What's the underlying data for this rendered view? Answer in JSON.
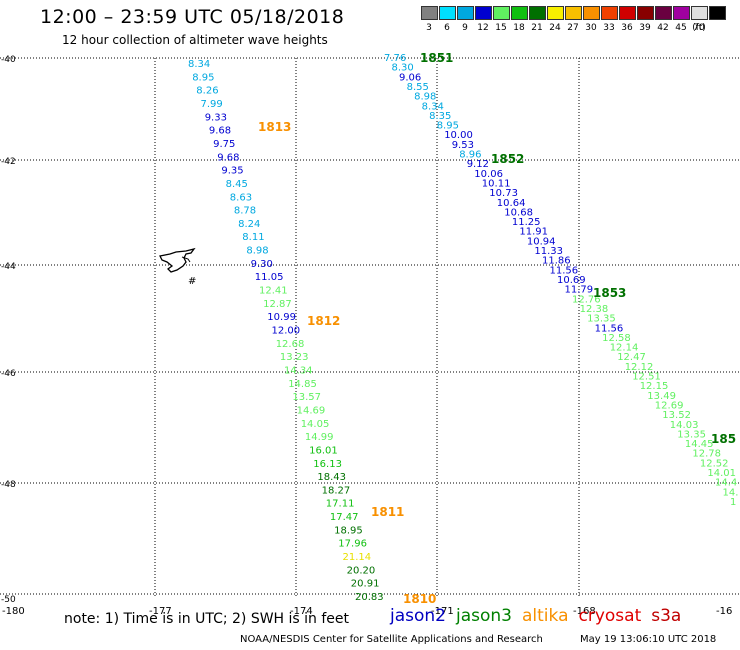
{
  "header": {
    "title": "12:00 – 23:59 UTC 05/18/2018",
    "subtitle": "12 hour collection of altimeter wave heights"
  },
  "colorbar": {
    "unit": "(ft)",
    "bins": [
      {
        "label": "3",
        "color": "#808080"
      },
      {
        "label": "6",
        "color": "#00e0ff"
      },
      {
        "label": "9",
        "color": "#00a8e0"
      },
      {
        "label": "12",
        "color": "#0000d0"
      },
      {
        "label": "15",
        "color": "#60f060"
      },
      {
        "label": "18",
        "color": "#10c010"
      },
      {
        "label": "21",
        "color": "#007000"
      },
      {
        "label": "24",
        "color": "#f8f000"
      },
      {
        "label": "27",
        "color": "#f8c000"
      },
      {
        "label": "30",
        "color": "#f89000"
      },
      {
        "label": "33",
        "color": "#f04000"
      },
      {
        "label": "36",
        "color": "#d00000"
      },
      {
        "label": "39",
        "color": "#880000"
      },
      {
        "label": "42",
        "color": "#6a0040"
      },
      {
        "label": "45",
        "color": "#a000a0"
      },
      {
        "label": "70",
        "color": "#e0e0e0"
      },
      {
        "label": "",
        "color": "#000000"
      }
    ]
  },
  "map": {
    "lon_ticks": [
      "-180",
      "-177",
      "-174",
      "-171",
      "-168",
      "-16"
    ],
    "lat_ticks": [
      "-40",
      "-42",
      "-44",
      "-46",
      "-48",
      "-50"
    ],
    "tracks": [
      {
        "time": "1851",
        "color": "#007000"
      },
      {
        "time": "1852",
        "color": "#007000"
      },
      {
        "time": "1853",
        "color": "#007000"
      },
      {
        "time": "185",
        "color": "#007000"
      },
      {
        "time": "1813",
        "color": "#f89000"
      },
      {
        "time": "1812",
        "color": "#f89000"
      },
      {
        "time": "1811",
        "color": "#f89000"
      },
      {
        "time": "1810",
        "color": "#f89000"
      }
    ],
    "track_a": [
      {
        "v": "8.34",
        "c": "#00a8e0"
      },
      {
        "v": "8.95",
        "c": "#00a8e0"
      },
      {
        "v": "8.26",
        "c": "#00a8e0"
      },
      {
        "v": "7.99",
        "c": "#00a8e0"
      },
      {
        "v": "9.33",
        "c": "#0000d0"
      },
      {
        "v": "9.68",
        "c": "#0000d0"
      },
      {
        "v": "9.75",
        "c": "#0000d0"
      },
      {
        "v": "9.68",
        "c": "#0000d0"
      },
      {
        "v": "9.35",
        "c": "#0000d0"
      },
      {
        "v": "8.45",
        "c": "#00a8e0"
      },
      {
        "v": "8.63",
        "c": "#00a8e0"
      },
      {
        "v": "8.78",
        "c": "#00a8e0"
      },
      {
        "v": "8.24",
        "c": "#00a8e0"
      },
      {
        "v": "8.11",
        "c": "#00a8e0"
      },
      {
        "v": "8.98",
        "c": "#00a8e0"
      },
      {
        "v": "9.30",
        "c": "#0000d0"
      },
      {
        "v": "11.05",
        "c": "#0000d0"
      },
      {
        "v": "12.41",
        "c": "#60f060"
      },
      {
        "v": "12.87",
        "c": "#60f060"
      },
      {
        "v": "10.99",
        "c": "#0000d0"
      },
      {
        "v": "12.00",
        "c": "#0000d0"
      },
      {
        "v": "12.68",
        "c": "#60f060"
      },
      {
        "v": "13.23",
        "c": "#60f060"
      },
      {
        "v": "14.34",
        "c": "#60f060"
      },
      {
        "v": "14.85",
        "c": "#60f060"
      },
      {
        "v": "13.57",
        "c": "#60f060"
      },
      {
        "v": "14.69",
        "c": "#60f060"
      },
      {
        "v": "14.05",
        "c": "#60f060"
      },
      {
        "v": "14.99",
        "c": "#60f060"
      },
      {
        "v": "16.01",
        "c": "#10c010"
      },
      {
        "v": "16.13",
        "c": "#10c010"
      },
      {
        "v": "18.43",
        "c": "#007000"
      },
      {
        "v": "18.27",
        "c": "#007000"
      },
      {
        "v": "17.11",
        "c": "#10c010"
      },
      {
        "v": "17.47",
        "c": "#10c010"
      },
      {
        "v": "18.95",
        "c": "#007000"
      },
      {
        "v": "17.96",
        "c": "#10c010"
      },
      {
        "v": "21.14",
        "c": "#e8e000"
      },
      {
        "v": "20.20",
        "c": "#007000"
      },
      {
        "v": "20.91",
        "c": "#007000"
      },
      {
        "v": "20.83",
        "c": "#007000"
      }
    ],
    "track_b": [
      {
        "v": "7.76",
        "c": "#00a8e0"
      },
      {
        "v": "8.30",
        "c": "#00a8e0"
      },
      {
        "v": "9.06",
        "c": "#0000d0"
      },
      {
        "v": "8.55",
        "c": "#00a8e0"
      },
      {
        "v": "8.98",
        "c": "#00a8e0"
      },
      {
        "v": "8.34",
        "c": "#00a8e0"
      },
      {
        "v": "8.35",
        "c": "#00a8e0"
      },
      {
        "v": "8.95",
        "c": "#00a8e0"
      },
      {
        "v": "10.00",
        "c": "#0000d0"
      },
      {
        "v": "9.53",
        "c": "#0000d0"
      },
      {
        "v": "8.96",
        "c": "#00a8e0"
      },
      {
        "v": "9.12",
        "c": "#0000d0"
      },
      {
        "v": "10.06",
        "c": "#0000d0"
      },
      {
        "v": "10.11",
        "c": "#0000d0"
      },
      {
        "v": "10.73",
        "c": "#0000d0"
      },
      {
        "v": "10.64",
        "c": "#0000d0"
      },
      {
        "v": "10.68",
        "c": "#0000d0"
      },
      {
        "v": "11.25",
        "c": "#0000d0"
      },
      {
        "v": "11.91",
        "c": "#0000d0"
      },
      {
        "v": "10.94",
        "c": "#0000d0"
      },
      {
        "v": "11.33",
        "c": "#0000d0"
      },
      {
        "v": "11.86",
        "c": "#0000d0"
      },
      {
        "v": "11.56",
        "c": "#0000d0"
      },
      {
        "v": "10.69",
        "c": "#0000d0"
      },
      {
        "v": "11.79",
        "c": "#0000d0"
      },
      {
        "v": "12.76",
        "c": "#60f060"
      },
      {
        "v": "12.38",
        "c": "#60f060"
      },
      {
        "v": "13.35",
        "c": "#60f060"
      },
      {
        "v": "11.56",
        "c": "#0000d0"
      },
      {
        "v": "12.58",
        "c": "#60f060"
      },
      {
        "v": "12.14",
        "c": "#60f060"
      },
      {
        "v": "12.47",
        "c": "#60f060"
      },
      {
        "v": "12.12",
        "c": "#60f060"
      },
      {
        "v": "12.51",
        "c": "#60f060"
      },
      {
        "v": "12.15",
        "c": "#60f060"
      },
      {
        "v": "13.49",
        "c": "#60f060"
      },
      {
        "v": "12.69",
        "c": "#60f060"
      },
      {
        "v": "13.52",
        "c": "#60f060"
      },
      {
        "v": "14.03",
        "c": "#60f060"
      },
      {
        "v": "13.35",
        "c": "#60f060"
      },
      {
        "v": "14.45",
        "c": "#60f060"
      },
      {
        "v": "12.78",
        "c": "#60f060"
      },
      {
        "v": "12.52",
        "c": "#60f060"
      },
      {
        "v": "14.01",
        "c": "#60f060"
      },
      {
        "v": "14.4",
        "c": "#60f060"
      },
      {
        "v": "14.",
        "c": "#60f060"
      },
      {
        "v": "1",
        "c": "#60f060"
      }
    ],
    "land_label": "#"
  },
  "footer": {
    "note": "note: 1) Time is in UTC; 2) SWH is in feet",
    "satellites": [
      {
        "name": "jason2",
        "color": "#0000c0"
      },
      {
        "name": "jason3",
        "color": "#008000"
      },
      {
        "name": "altika",
        "color": "#f89000"
      },
      {
        "name": "cryosat",
        "color": "#e00000"
      },
      {
        "name": "s3a",
        "color": "#c00000"
      }
    ],
    "credit": "NOAA/NESDIS Center for Satellite Applications and Research",
    "timestamp": "May 19 13:06:10 UTC 2018"
  }
}
